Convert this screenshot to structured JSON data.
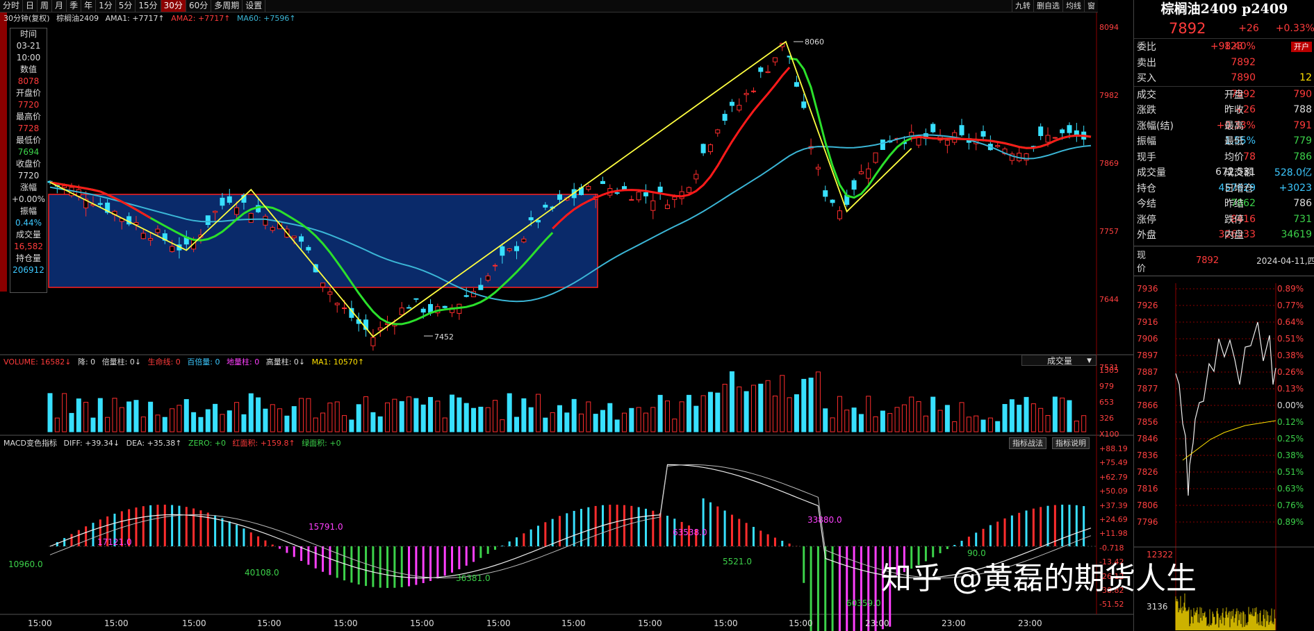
{
  "toolbar": {
    "items": [
      "分时",
      "日",
      "周",
      "月",
      "季",
      "年",
      "1分",
      "5分",
      "15分",
      "30分",
      "60分",
      "多周期",
      "设置"
    ],
    "active_index": 9,
    "right_buttons": [
      "九转",
      "删自选",
      "均线",
      "窗"
    ]
  },
  "legend_main": {
    "period": "30分钟(复权)",
    "symbol": "棕榈油2409",
    "ama1": "AMA1: +7717↑",
    "ama2": "AMA2: +7717↑",
    "ma60": "MA60: +7596↑"
  },
  "info_box": [
    {
      "label": "时间",
      "value": ""
    },
    {
      "label": "03-21",
      "value": ""
    },
    {
      "label": "10:00",
      "value": ""
    },
    {
      "label": "数值",
      "value": "8078"
    },
    {
      "label": "开盘价",
      "value": "7720"
    },
    {
      "label": "最高价",
      "value": "7728"
    },
    {
      "label": "最低价",
      "value": "7694"
    },
    {
      "label": "收盘价",
      "value": "7720"
    },
    {
      "label": "涨幅",
      "value": "+0.00%"
    },
    {
      "label": "振幅",
      "value": "0.44%"
    },
    {
      "label": "成交量",
      "value": "16,582"
    },
    {
      "label": "持仓量",
      "value": "206912"
    }
  ],
  "main_y_axis": [
    "8094",
    "7982",
    "7869",
    "7757",
    "7644",
    "7531"
  ],
  "annotations": {
    "high": "8060",
    "low": "7452"
  },
  "volume_legend": {
    "volume": "VOLUME: 16582↓",
    "jiang": "降: 0",
    "beiliang": "倍量柱: 0↓",
    "shengming": "生命线: 0",
    "bailiang": "百倍量: 0",
    "diliang": "地量柱: 0",
    "gaoliang": "高量柱: 0↓",
    "ma1": "MA1: 10570↑"
  },
  "volume_dropdown": "成交量",
  "volume_y_axis": [
    "1305",
    "979",
    "653",
    "326",
    "X100"
  ],
  "macd_legend": {
    "title": "MACD变色指标",
    "diff": "DIFF: +39.34↓",
    "dea": "DEA: +35.38↑",
    "zero": "ZERO: +0",
    "hongmianji": "红面积: +159.8↑",
    "lvmianji": "绿面积: +0"
  },
  "macd_buttons": [
    "指标战法",
    "指标说明"
  ],
  "macd_y_axis": [
    "+88.19",
    "+75.49",
    "+62.79",
    "+50.09",
    "+37.39",
    "+24.69",
    "+11.98",
    "-0.718",
    "-13.42",
    "-26.12",
    "-38.82",
    "-51.52"
  ],
  "macd_labels": [
    "10960.0",
    "17121.0",
    "40108.0",
    "15791.0",
    "36381.0",
    "63538.0",
    "5521.0",
    "33880.0",
    "60359.0",
    "90.0"
  ],
  "x_axis": [
    "15:00",
    "15:00",
    "15:00",
    "15:00",
    "15:00",
    "15:00",
    "15:00",
    "15:00",
    "15:00",
    "15:00",
    "15:00",
    "23:00",
    "23:00",
    "23:00"
  ],
  "right_panel": {
    "title": "棕榈油2409 p2409",
    "price": "7892",
    "change": "+26",
    "change_pct": "+0.33%",
    "rows": [
      [
        {
          "t": "委比",
          "c": "white"
        },
        {
          "t": "+98.40%",
          "c": "red"
        },
        {
          "t": "123",
          "c": "red"
        },
        {
          "t": "开户",
          "c": "btn"
        }
      ],
      [
        {
          "t": "卖出",
          "c": "white"
        },
        {
          "t": "7892",
          "c": "red"
        },
        {
          "t": "",
          "c": "white"
        },
        {
          "t": "",
          "c": "white"
        }
      ],
      [
        {
          "t": "买入",
          "c": "white"
        },
        {
          "t": "7890",
          "c": "red"
        },
        {
          "t": "",
          "c": "white"
        },
        {
          "t": "12",
          "c": "yellow"
        }
      ],
      [
        {
          "t": "成交",
          "c": "white"
        },
        {
          "t": "7892",
          "c": "red"
        },
        {
          "t": "开盘",
          "c": "white"
        },
        {
          "t": "790",
          "c": "red"
        }
      ],
      [
        {
          "t": "涨跌",
          "c": "white"
        },
        {
          "t": "+26",
          "c": "red"
        },
        {
          "t": "昨收",
          "c": "white"
        },
        {
          "t": "788",
          "c": "white"
        }
      ],
      [
        {
          "t": "涨幅(结)",
          "c": "white"
        },
        {
          "t": "+0.33%",
          "c": "red"
        },
        {
          "t": "最高",
          "c": "white"
        },
        {
          "t": "791",
          "c": "red"
        }
      ],
      [
        {
          "t": "振幅",
          "c": "white"
        },
        {
          "t": "1.55%",
          "c": "cyan"
        },
        {
          "t": "最低",
          "c": "white"
        },
        {
          "t": "779",
          "c": "green"
        }
      ],
      [
        {
          "t": "现手",
          "c": "white"
        },
        {
          "t": "78",
          "c": "red"
        },
        {
          "t": "均价",
          "c": "white"
        },
        {
          "t": "786",
          "c": "green"
        }
      ],
      [
        {
          "t": "成交量",
          "c": "white"
        },
        {
          "t": "672,531",
          "c": "white"
        },
        {
          "t": "成交额",
          "c": "white"
        },
        {
          "t": "528.0亿",
          "c": "cyan"
        }
      ],
      [
        {
          "t": "持仓",
          "c": "white"
        },
        {
          "t": "457629",
          "c": "cyan"
        },
        {
          "t": "日增仓",
          "c": "white"
        },
        {
          "t": "+3023",
          "c": "cyan"
        }
      ],
      [
        {
          "t": "今结",
          "c": "white"
        },
        {
          "t": "7862",
          "c": "green"
        },
        {
          "t": "昨结",
          "c": "white"
        },
        {
          "t": "786",
          "c": "white"
        }
      ],
      [
        {
          "t": "涨停",
          "c": "white"
        },
        {
          "t": "8416",
          "c": "red"
        },
        {
          "t": "跌停",
          "c": "white"
        },
        {
          "t": "731",
          "c": "green"
        }
      ],
      [
        {
          "t": "外盘",
          "c": "white"
        },
        {
          "t": "326333",
          "c": "red"
        },
        {
          "t": "内盘",
          "c": "white"
        },
        {
          "t": "34619",
          "c": "green"
        }
      ]
    ],
    "now_label": "现价",
    "now_price": "7892",
    "date": "2024-04-11,四",
    "mini_y_left": [
      "7936",
      "7926",
      "7916",
      "7906",
      "7897",
      "7887",
      "7877",
      "7866",
      "7856",
      "7846",
      "7836",
      "7826",
      "7816",
      "7806",
      "7796"
    ],
    "mini_y_right": [
      "0.89%",
      "0.77%",
      "0.64%",
      "0.51%",
      "0.38%",
      "0.26%",
      "0.13%",
      "0.00%",
      "0.12%",
      "0.25%",
      "0.38%",
      "0.51%",
      "0.63%",
      "0.76%",
      "0.89%"
    ],
    "mini_vol": [
      "12322",
      "3136"
    ]
  },
  "watermark": "知乎 @黄磊的期货人生",
  "colors": {
    "up": "#ff2d2d",
    "down": "#38e0ff",
    "ama_green": "#2be02b",
    "ama_red": "#ff1a1a",
    "ma60": "#3bb6d6",
    "zigzag": "#ffff40",
    "box_fill": "#0a2a6a",
    "box_border": "#ff2020"
  }
}
